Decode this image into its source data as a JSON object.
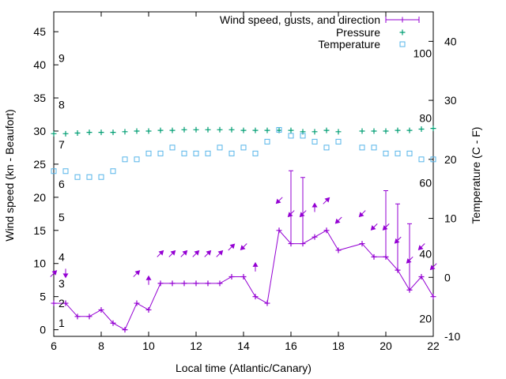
{
  "chart_data": {
    "type": "line",
    "xlabel": "Local time (Atlantic/Canary)",
    "ylabel_left": "Wind speed (kn - Beaufort)",
    "ylabel_right": "Temperature (C - F)",
    "x_range": [
      6,
      22
    ],
    "y_left_range": [
      -1,
      48
    ],
    "y_right_range": [
      -10,
      45
    ],
    "x_ticks": [
      "6",
      "8",
      "10",
      "12",
      "14",
      "16",
      "18",
      "20",
      "22"
    ],
    "y_left_ticks": [
      "0",
      "5",
      "10",
      "15",
      "20",
      "25",
      "30",
      "35",
      "40",
      "45"
    ],
    "y_right_ticks": [
      "-10",
      "0",
      "10",
      "20",
      "30",
      "40"
    ],
    "beaufort_labels": [
      {
        "label": "1",
        "y": 1
      },
      {
        "label": "2",
        "y": 4
      },
      {
        "label": "3",
        "y": 7
      },
      {
        "label": "4",
        "y": 11
      },
      {
        "label": "5",
        "y": 17
      },
      {
        "label": "6",
        "y": 22
      },
      {
        "label": "7",
        "y": 28
      },
      {
        "label": "8",
        "y": 34
      },
      {
        "label": "9",
        "y": 41
      }
    ],
    "fahrenheit_labels": [
      {
        "label": "20",
        "t": -7
      },
      {
        "label": "40",
        "t": 4
      },
      {
        "label": "60",
        "t": 16
      },
      {
        "label": "80",
        "t": 27
      },
      {
        "label": "100",
        "t": 38
      }
    ],
    "legend": {
      "placement": "top-right",
      "entries": [
        {
          "label": "Wind speed, gusts, and direction",
          "color": "#9400d3"
        },
        {
          "label": "Pressure",
          "color": "#009e73"
        },
        {
          "label": "Temperature",
          "color": "#56b4e9"
        }
      ]
    },
    "series": [
      {
        "name": "Wind speed, gusts, and direction",
        "color": "#9400d3",
        "x": [
          6,
          6.5,
          7,
          7.5,
          8,
          8.5,
          9,
          9.5,
          10,
          10.5,
          11,
          11.5,
          12,
          12.5,
          13,
          13.5,
          14,
          14.5,
          15,
          15.5,
          16,
          16.5,
          17,
          17.5,
          18,
          19,
          19.5,
          20,
          20.5,
          21,
          21.5,
          22
        ],
        "y": [
          4,
          4,
          2,
          2,
          3,
          1,
          0,
          4,
          3,
          7,
          7,
          7,
          7,
          7,
          7,
          8,
          8,
          5,
          4,
          15,
          13,
          13,
          14,
          15,
          12,
          13,
          11,
          11,
          9,
          6,
          8,
          5
        ],
        "gusts": [
          null,
          null,
          null,
          null,
          null,
          null,
          null,
          null,
          null,
          null,
          null,
          null,
          null,
          null,
          null,
          null,
          null,
          null,
          null,
          null,
          24,
          23,
          null,
          null,
          null,
          null,
          null,
          21,
          19,
          16,
          null,
          null
        ],
        "direction_deg": [
          315,
          90,
          null,
          null,
          null,
          null,
          null,
          315,
          270,
          315,
          315,
          315,
          315,
          315,
          315,
          315,
          135,
          270,
          null,
          135,
          135,
          135,
          270,
          315,
          135,
          135,
          135,
          135,
          135,
          135,
          135,
          135
        ]
      },
      {
        "name": "Pressure",
        "color": "#009e73",
        "x": [
          6,
          6.5,
          7,
          7.5,
          8,
          8.5,
          9,
          9.5,
          10,
          10.5,
          11,
          11.5,
          12,
          12.5,
          13,
          13.5,
          14,
          14.5,
          15,
          15.5,
          16,
          16.5,
          17,
          17.5,
          18,
          19,
          19.5,
          20,
          20.5,
          21,
          21.5,
          22
        ],
        "y": [
          29.6,
          29.6,
          29.7,
          29.8,
          29.8,
          29.8,
          29.9,
          30.0,
          30.0,
          30.1,
          30.1,
          30.2,
          30.2,
          30.2,
          30.2,
          30.2,
          30.1,
          30.1,
          30.1,
          30.1,
          30.1,
          29.9,
          29.9,
          30.1,
          29.9,
          30.0,
          30.0,
          30.0,
          30.1,
          30.1,
          30.3,
          30.4
        ]
      },
      {
        "name": "Temperature",
        "color": "#56b4e9",
        "x": [
          6,
          6.5,
          7,
          7.5,
          8,
          8.5,
          9,
          9.5,
          10,
          10.5,
          11,
          11.5,
          12,
          12.5,
          13,
          13.5,
          14,
          14.5,
          15,
          15.5,
          16,
          16.5,
          17,
          17.5,
          18,
          19,
          19.5,
          20,
          20.5,
          21,
          21.5,
          22
        ],
        "y": [
          18,
          18,
          17,
          17,
          17,
          18,
          20,
          20,
          21,
          21,
          22,
          21,
          21,
          21,
          22,
          21,
          22,
          21,
          23,
          25,
          24,
          24,
          23,
          22,
          23,
          22,
          22,
          21,
          21,
          21,
          20,
          20
        ]
      }
    ]
  }
}
